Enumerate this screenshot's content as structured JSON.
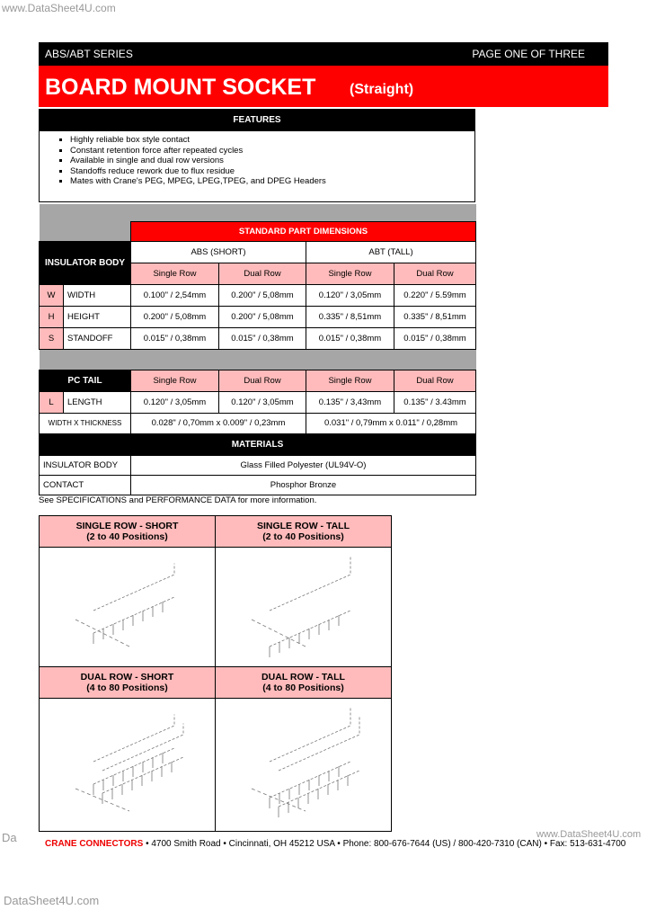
{
  "watermark_top": "www.DataSheet4U.com",
  "header": {
    "series": "ABS/ABT SERIES",
    "page": "PAGE ONE OF THREE",
    "title": "BOARD MOUNT SOCKET",
    "subtitle": "(Straight)"
  },
  "features": {
    "title": "FEATURES",
    "items": [
      "Highly reliable box style contact",
      "Constant retention force after repeated cycles",
      "Available in single and dual row versions",
      "Standoffs reduce rework due to flux residue",
      "Mates with Crane's PEG, MPEG, LPEG,TPEG, and DPEG Headers"
    ]
  },
  "dimensions": {
    "title": "STANDARD PART DIMENSIONS",
    "insulator_body": "INSULATOR BODY",
    "groups": [
      "ABS (SHORT)",
      "ABT (TALL)"
    ],
    "columns": [
      "Single Row",
      "Dual Row",
      "Single Row",
      "Dual Row"
    ],
    "rows": [
      {
        "code": "W",
        "label": "WIDTH",
        "values": [
          "0.100\" / 2,54mm",
          "0.200\" / 5,08mm",
          "0.120\" / 3,05mm",
          "0.220\" / 5.59mm"
        ]
      },
      {
        "code": "H",
        "label": "HEIGHT",
        "values": [
          "0.200\" / 5,08mm",
          "0.200\" / 5,08mm",
          "0.335\" / 8,51mm",
          "0.335\" / 8,51mm"
        ]
      },
      {
        "code": "S",
        "label": "STANDOFF",
        "values": [
          "0.015\" / 0,38mm",
          "0.015\" / 0,38mm",
          "0.015\" / 0,38mm",
          "0.015\" / 0,38mm"
        ]
      }
    ]
  },
  "pc_tail": {
    "title": "PC TAIL",
    "columns": [
      "Single Row",
      "Dual Row",
      "Single Row",
      "Dual Row"
    ],
    "rows": [
      {
        "code": "L",
        "label": "LENGTH",
        "values": [
          "0.120\" / 3,05mm",
          "0.120\" / 3,05mm",
          "0.135\" / 3,43mm",
          "0.135\" / 3.43mm"
        ]
      }
    ],
    "width_thickness": {
      "label": "WIDTH X THICKNESS",
      "values": [
        "0.028\" / 0,70mm x 0.009\" / 0,23mm",
        "0.031\" / 0,79mm x 0.011\" / 0,28mm"
      ]
    }
  },
  "materials": {
    "title": "MATERIALS",
    "rows": [
      [
        "INSULATOR BODY",
        "Glass Filled Polyester (UL94V-O)"
      ],
      [
        "CONTACT",
        "Phosphor Bronze"
      ]
    ]
  },
  "note": "See SPECIFICATIONS and PERFORMANCE DATA for more information.",
  "variants": [
    {
      "title": "SINGLE ROW - SHORT",
      "positions": "(2 to 40 Positions)"
    },
    {
      "title": "SINGLE ROW - TALL",
      "positions": "(2 to 40 Positions)"
    },
    {
      "title": "DUAL ROW - SHORT",
      "positions": "(4 to 80 Positions)"
    },
    {
      "title": "DUAL ROW - TALL",
      "positions": "(4 to 80 Positions)"
    }
  ],
  "footer": {
    "company": "CRANE CONNECTORS",
    "address": "• 4700 Smith Road • Cincinnati, OH 45212 USA • Phone: 800-676-7644 (US) / 800-420-7310 (CAN) • Fax: 513-631-4700"
  },
  "watermark_side": "Da",
  "watermark_footer": "www.DataSheet4U.com",
  "watermark_bottom": "DataSheet4U.com"
}
